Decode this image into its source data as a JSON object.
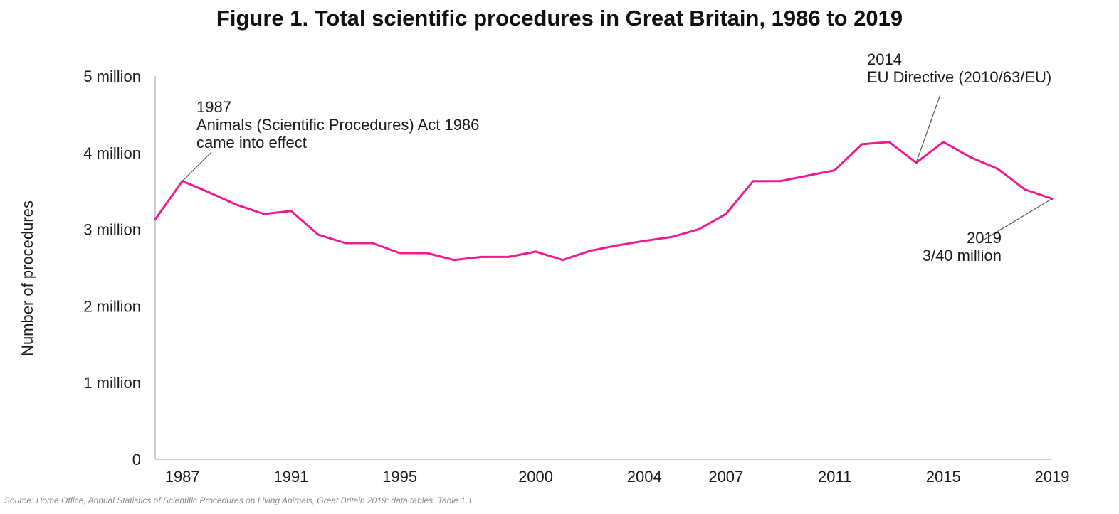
{
  "chart_data": {
    "type": "line",
    "title": "Figure 1. Total scientific procedures in Great Britain, 1986 to 2019",
    "ylabel": "Number of procedures",
    "xlabel": "",
    "ylim": [
      0,
      5000000
    ],
    "xlim": [
      1986,
      2019
    ],
    "y_ticks": [
      {
        "value": 0,
        "label": "0"
      },
      {
        "value": 1000000,
        "label": "1 million"
      },
      {
        "value": 2000000,
        "label": "2 million"
      },
      {
        "value": 3000000,
        "label": "3 million"
      },
      {
        "value": 4000000,
        "label": "4 million"
      },
      {
        "value": 5000000,
        "label": "5 million"
      }
    ],
    "x_ticks": [
      {
        "value": 1987,
        "label": "1987"
      },
      {
        "value": 1991,
        "label": "1991"
      },
      {
        "value": 1995,
        "label": "1995"
      },
      {
        "value": 2000,
        "label": "2000"
      },
      {
        "value": 2004,
        "label": "2004"
      },
      {
        "value": 2007,
        "label": "2007"
      },
      {
        "value": 2011,
        "label": "2011"
      },
      {
        "value": 2015,
        "label": "2015"
      },
      {
        "value": 2019,
        "label": "2019"
      }
    ],
    "series": [
      {
        "name": "Total scientific procedures",
        "color": "#ee1a8e",
        "x": [
          1986,
          1987,
          1988,
          1989,
          1990,
          1991,
          1992,
          1993,
          1994,
          1995,
          1996,
          1997,
          1998,
          1999,
          2000,
          2001,
          2002,
          2003,
          2004,
          2005,
          2006,
          2007,
          2008,
          2009,
          2010,
          2011,
          2012,
          2013,
          2014,
          2015,
          2016,
          2017,
          2018,
          2019
        ],
        "values": [
          3130000,
          3630000,
          3480000,
          3320000,
          3200000,
          3240000,
          2930000,
          2820000,
          2820000,
          2690000,
          2690000,
          2600000,
          2640000,
          2640000,
          2710000,
          2600000,
          2720000,
          2790000,
          2850000,
          2900000,
          3000000,
          3200000,
          3630000,
          3630000,
          3700000,
          3770000,
          4110000,
          4140000,
          3870000,
          4140000,
          3940000,
          3790000,
          3520000,
          3400000
        ]
      }
    ],
    "annotations": [
      {
        "x": 1987,
        "y": 3630000,
        "lines": [
          "1987",
          "Animals (Scientific Procedures) Act 1986",
          "came into effect"
        ]
      },
      {
        "x": 2014,
        "y": 3870000,
        "lines": [
          "2014",
          "EU Directive (2010/63/EU)"
        ]
      },
      {
        "x": 2019,
        "y": 3400000,
        "lines": [
          "2019",
          "3/40 million"
        ]
      }
    ],
    "source": "Source: Home Office, Annual Statistics of Scientific Procedures on Living Animals, Great Britain 2019: data tables, Table 1.1"
  }
}
